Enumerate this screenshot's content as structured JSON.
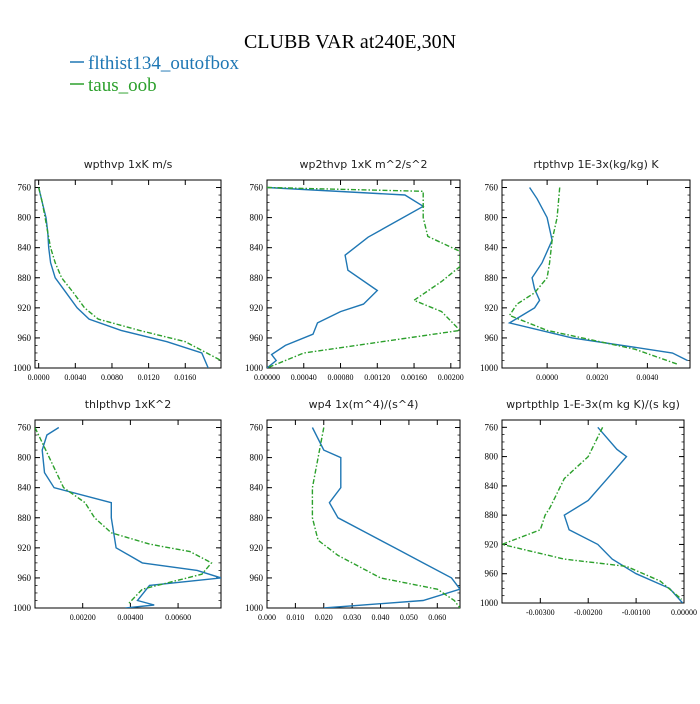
{
  "figure": {
    "title": "CLUBB VAR at240E,30N",
    "legend": [
      {
        "label": "flthist134_outofbox",
        "color": "#1f77b4"
      },
      {
        "label": "taus_oob",
        "color": "#2ca02c"
      }
    ]
  },
  "chart_data": [
    {
      "type": "line",
      "title": "wpthvp  1xK m/s",
      "xlim": [
        -0.0004,
        0.0199
      ],
      "ylim": [
        1000,
        750
      ],
      "y_reversed": true,
      "xticks": [
        0.0,
        0.004,
        0.008,
        0.012,
        0.016
      ],
      "xtick_labels": [
        "0.0000",
        "0.0040",
        "0.0080",
        "0.0120",
        "0.0160"
      ],
      "yticks": [
        760,
        800,
        840,
        880,
        920,
        960,
        1000
      ],
      "series": [
        {
          "name": "flthist134_outofbox",
          "color": "#1f77b4",
          "dash": "solid",
          "points": [
            [
              0.0,
              760
            ],
            [
              0.0004,
              780
            ],
            [
              0.0008,
              800
            ],
            [
              0.001,
              820
            ],
            [
              0.0011,
              840
            ],
            [
              0.0013,
              860
            ],
            [
              0.0018,
              880
            ],
            [
              0.003,
              900
            ],
            [
              0.0042,
              920
            ],
            [
              0.0055,
              935
            ],
            [
              0.009,
              950
            ],
            [
              0.014,
              965
            ],
            [
              0.0178,
              980
            ],
            [
              0.0185,
              1000
            ]
          ]
        },
        {
          "name": "taus_oob",
          "color": "#2ca02c",
          "dash": "dashdot",
          "points": [
            [
              0.0,
              760
            ],
            [
              0.0004,
              780
            ],
            [
              0.0007,
              800
            ],
            [
              0.001,
              820
            ],
            [
              0.0013,
              840
            ],
            [
              0.0018,
              860
            ],
            [
              0.0025,
              880
            ],
            [
              0.0038,
              900
            ],
            [
              0.005,
              920
            ],
            [
              0.0065,
              935
            ],
            [
              0.011,
              950
            ],
            [
              0.016,
              965
            ],
            [
              0.0199,
              990
            ]
          ]
        }
      ]
    },
    {
      "type": "line",
      "title": "wp2thvp  1xK m^2/s^2",
      "xlim": [
        0.0,
        0.0021
      ],
      "ylim": [
        1000,
        750
      ],
      "y_reversed": true,
      "xticks": [
        0.0,
        0.0004,
        0.0008,
        0.0012,
        0.0016,
        0.002
      ],
      "xtick_labels": [
        "0.00000",
        "0.00040",
        "0.00080",
        "0.00120",
        "0.00160",
        "0.00200"
      ],
      "yticks": [
        760,
        800,
        840,
        880,
        920,
        960,
        1000
      ],
      "series": [
        {
          "name": "flthist134_outofbox",
          "color": "#1f77b4",
          "dash": "solid",
          "points": [
            [
              0.0,
              760
            ],
            [
              0.0015,
              770
            ],
            [
              0.0017,
              785
            ],
            [
              0.0011,
              826
            ],
            [
              0.00085,
              850
            ],
            [
              0.00088,
              870
            ],
            [
              0.0012,
              897
            ],
            [
              0.00105,
              915
            ],
            [
              0.0008,
              925
            ],
            [
              0.00055,
              940
            ],
            [
              0.0005,
              955
            ],
            [
              0.0002,
              970
            ],
            [
              5e-05,
              982
            ],
            [
              0.0001,
              990
            ],
            [
              0.0,
              1000
            ]
          ]
        },
        {
          "name": "taus_oob",
          "color": "#2ca02c",
          "dash": "dashdot",
          "points": [
            [
              0.0,
              760
            ],
            [
              0.0017,
              765
            ],
            [
              0.0017,
              800
            ],
            [
              0.00175,
              825
            ],
            [
              0.0021,
              845
            ],
            [
              0.0021,
              865
            ],
            [
              0.0019,
              885
            ],
            [
              0.0016,
              910
            ],
            [
              0.0019,
              925
            ],
            [
              0.0021,
              950
            ],
            [
              0.0004,
              980
            ],
            [
              0.0,
              1000
            ]
          ]
        }
      ]
    },
    {
      "type": "line",
      "title": "rtpthvp  1E-3x(kg/kg) K",
      "xlim": [
        -0.0018,
        0.0057
      ],
      "ylim": [
        1000,
        750
      ],
      "y_reversed": true,
      "xticks": [
        0.0,
        0.002,
        0.004
      ],
      "xtick_labels": [
        "0.0000",
        "0.0020",
        "0.0040"
      ],
      "yticks": [
        760,
        800,
        840,
        880,
        920,
        960,
        1000
      ],
      "series": [
        {
          "name": "flthist134_outofbox",
          "color": "#1f77b4",
          "dash": "solid",
          "points": [
            [
              -0.0007,
              760
            ],
            [
              -0.0004,
              775
            ],
            [
              0.0,
              800
            ],
            [
              0.0002,
              830
            ],
            [
              -0.0002,
              860
            ],
            [
              -0.0006,
              880
            ],
            [
              -0.0005,
              895
            ],
            [
              -0.0003,
              910
            ],
            [
              -0.0005,
              920
            ],
            [
              -0.001,
              930
            ],
            [
              -0.0015,
              940
            ],
            [
              0.001,
              960
            ],
            [
              0.005,
              980
            ],
            [
              0.0056,
              990
            ]
          ]
        },
        {
          "name": "taus_oob",
          "color": "#2ca02c",
          "dash": "dashdot",
          "points": [
            [
              0.0005,
              760
            ],
            [
              0.0004,
              800
            ],
            [
              0.0002,
              830
            ],
            [
              0.0001,
              860
            ],
            [
              0.0,
              880
            ],
            [
              -0.0005,
              900
            ],
            [
              -0.0012,
              915
            ],
            [
              -0.0015,
              930
            ],
            [
              0.0,
              950
            ],
            [
              0.0035,
              975
            ],
            [
              0.0052,
              995
            ]
          ]
        }
      ]
    },
    {
      "type": "line",
      "title": "thlpthvp  1xK^2",
      "xlim": [
        0.0,
        0.0078
      ],
      "ylim": [
        1000,
        750
      ],
      "y_reversed": true,
      "xticks": [
        0.002,
        0.004,
        0.006
      ],
      "xtick_labels": [
        "0.00200",
        "0.00400",
        "0.00600"
      ],
      "yticks": [
        760,
        800,
        840,
        880,
        920,
        960,
        1000
      ],
      "series": [
        {
          "name": "flthist134_outofbox",
          "color": "#1f77b4",
          "dash": "solid",
          "points": [
            [
              0.001,
              760
            ],
            [
              0.0005,
              770
            ],
            [
              0.0003,
              790
            ],
            [
              0.0004,
              820
            ],
            [
              0.0008,
              840
            ],
            [
              0.0032,
              860
            ],
            [
              0.0032,
              880
            ],
            [
              0.0034,
              920
            ],
            [
              0.0045,
              940
            ],
            [
              0.0068,
              950
            ],
            [
              0.0078,
              960
            ],
            [
              0.0048,
              970
            ],
            [
              0.0043,
              990
            ],
            [
              0.005,
              996
            ],
            [
              0.0038,
              1000
            ]
          ]
        },
        {
          "name": "taus_oob",
          "color": "#2ca02c",
          "dash": "dashdot",
          "points": [
            [
              0.0,
              760
            ],
            [
              0.0003,
              780
            ],
            [
              0.0006,
              800
            ],
            [
              0.0012,
              840
            ],
            [
              0.0021,
              860
            ],
            [
              0.0025,
              880
            ],
            [
              0.0032,
              900
            ],
            [
              0.0048,
              915
            ],
            [
              0.0065,
              925
            ],
            [
              0.0074,
              940
            ],
            [
              0.007,
              955
            ],
            [
              0.0045,
              975
            ],
            [
              0.0039,
              995
            ]
          ]
        }
      ]
    },
    {
      "type": "line",
      "title": "wp4  1x(m^4)/(s^4)",
      "xlim": [
        0.0,
        0.068
      ],
      "ylim": [
        1000,
        750
      ],
      "y_reversed": true,
      "xticks": [
        0.0,
        0.01,
        0.02,
        0.03,
        0.04,
        0.05,
        0.06
      ],
      "xtick_labels": [
        "0.000",
        "0.010",
        "0.020",
        "0.030",
        "0.040",
        "0.050",
        "0.060"
      ],
      "yticks": [
        760,
        800,
        840,
        880,
        920,
        960,
        1000
      ],
      "series": [
        {
          "name": "flthist134_outofbox",
          "color": "#1f77b4",
          "dash": "solid",
          "points": [
            [
              0.016,
              760
            ],
            [
              0.02,
              790
            ],
            [
              0.026,
              800
            ],
            [
              0.026,
              840
            ],
            [
              0.022,
              860
            ],
            [
              0.025,
              880
            ],
            [
              0.035,
              900
            ],
            [
              0.045,
              920
            ],
            [
              0.055,
              940
            ],
            [
              0.065,
              960
            ],
            [
              0.068,
              975
            ],
            [
              0.055,
              990
            ],
            [
              0.02,
              1000
            ]
          ]
        },
        {
          "name": "taus_oob",
          "color": "#2ca02c",
          "dash": "dashdot",
          "points": [
            [
              0.02,
              760
            ],
            [
              0.018,
              800
            ],
            [
              0.016,
              840
            ],
            [
              0.016,
              880
            ],
            [
              0.018,
              910
            ],
            [
              0.025,
              930
            ],
            [
              0.04,
              960
            ],
            [
              0.06,
              975
            ],
            [
              0.066,
              990
            ],
            [
              0.068,
              1000
            ]
          ]
        }
      ]
    },
    {
      "type": "line",
      "title": "wprtpthlp  1-E-3x(m kg K)/(s kg)",
      "xlim": [
        -0.0038,
        0.0
      ],
      "ylim": [
        1000,
        750
      ],
      "y_reversed": true,
      "xticks": [
        -0.003,
        -0.002,
        -0.001,
        0.0
      ],
      "xtick_labels": [
        "-0.00300",
        "-0.00200",
        "-0.00100",
        "0.00000"
      ],
      "yticks": [
        760,
        800,
        840,
        880,
        920,
        960,
        1000
      ],
      "series": [
        {
          "name": "flthist134_outofbox",
          "color": "#1f77b4",
          "dash": "solid",
          "points": [
            [
              -0.0018,
              760
            ],
            [
              -0.0014,
              790
            ],
            [
              -0.0012,
              800
            ],
            [
              -0.0016,
              830
            ],
            [
              -0.002,
              860
            ],
            [
              -0.0025,
              880
            ],
            [
              -0.0024,
              900
            ],
            [
              -0.0018,
              920
            ],
            [
              -0.0015,
              940
            ],
            [
              -0.001,
              960
            ],
            [
              -0.0003,
              980
            ],
            [
              -3e-05,
              1000
            ]
          ]
        },
        {
          "name": "taus_oob",
          "color": "#2ca02c",
          "dash": "dashdot",
          "points": [
            [
              -0.0017,
              760
            ],
            [
              -0.002,
              800
            ],
            [
              -0.0025,
              830
            ],
            [
              -0.0028,
              870
            ],
            [
              -0.0029,
              880
            ],
            [
              -0.003,
              900
            ],
            [
              -0.0038,
              920
            ],
            [
              -0.0025,
              940
            ],
            [
              -0.0012,
              950
            ],
            [
              -0.0005,
              970
            ],
            [
              -5e-05,
              995
            ]
          ]
        }
      ]
    }
  ]
}
